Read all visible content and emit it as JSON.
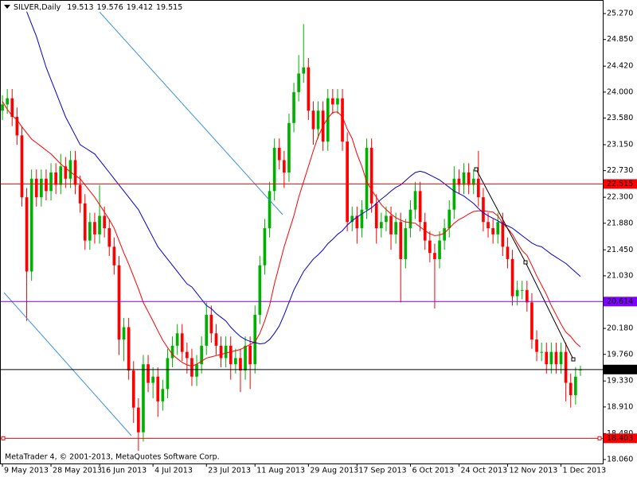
{
  "chart_data": {
    "type": "candlestick",
    "symbol": "SILVER,Daily",
    "footer": "MetaTrader 4, © 2001-2013, MetaQuotes Software Corp.",
    "up_color": "#00b000",
    "down_color": "#ff0000",
    "xlim": [
      -0.5,
      123.6
    ],
    "ylim": [
      17.996,
      25.489
    ],
    "grid": false,
    "yticks": [
      {
        "value": 25.27,
        "label": "25.270"
      },
      {
        "value": 24.85,
        "label": "24.850"
      },
      {
        "value": 24.42,
        "label": "24.420"
      },
      {
        "value": 24.0,
        "label": "24.000"
      },
      {
        "value": 23.58,
        "label": "23.580"
      },
      {
        "value": 23.15,
        "label": "23.150"
      },
      {
        "value": 22.73,
        "label": "22.730"
      },
      {
        "value": 22.3,
        "label": "22.300"
      },
      {
        "value": 21.88,
        "label": "21.880"
      },
      {
        "value": 21.45,
        "label": "21.450"
      },
      {
        "value": 21.03,
        "label": "21.030"
      },
      {
        "value": 20.61,
        "label": "20.610"
      },
      {
        "value": 20.18,
        "label": "20.180"
      },
      {
        "value": 19.76,
        "label": "19.760"
      },
      {
        "value": 19.33,
        "label": "19.330"
      },
      {
        "value": 18.91,
        "label": "18.910"
      },
      {
        "value": 18.48,
        "label": "18.480"
      },
      {
        "value": 18.06,
        "label": "18.060"
      }
    ],
    "xticks": [
      {
        "value": 0,
        "label": "9 May 2013"
      },
      {
        "value": 10,
        "label": "28 May 2013"
      },
      {
        "value": 20,
        "label": "16 Jun 2013"
      },
      {
        "value": 31,
        "label": "4 Jul 2013"
      },
      {
        "value": 42,
        "label": "23 Jul 2013"
      },
      {
        "value": 52,
        "label": "11 Aug 2013"
      },
      {
        "value": 63,
        "label": "29 Aug 2013"
      },
      {
        "value": 73,
        "label": "17 Sep 2013"
      },
      {
        "value": 84,
        "label": "6 Oct 2013"
      },
      {
        "value": 94,
        "label": "24 Oct 2013"
      },
      {
        "value": 104,
        "label": "12 Nov 2013"
      },
      {
        "value": 115,
        "label": "1 Dec 2013"
      }
    ],
    "hlines": [
      {
        "value": 22.515,
        "color": "#ff0000"
      },
      {
        "value": 20.614,
        "color": "#8000ff"
      },
      {
        "value": 19.515,
        "color": "#000000"
      },
      {
        "value": 18.403,
        "color": "#ff0000"
      }
    ],
    "candles": [
      [
        23.7,
        23.95,
        23.55,
        23.8
      ],
      [
        23.8,
        24.05,
        23.65,
        23.9
      ],
      [
        23.9,
        24.05,
        23.45,
        23.6
      ],
      [
        23.6,
        23.75,
        23.15,
        23.3
      ],
      [
        23.3,
        23.45,
        22.15,
        22.3
      ],
      [
        22.3,
        22.45,
        20.3,
        21.1
      ],
      [
        21.1,
        22.75,
        20.95,
        22.6
      ],
      [
        22.6,
        22.75,
        22.15,
        22.3
      ],
      [
        22.3,
        22.75,
        22.15,
        22.6
      ],
      [
        22.6,
        22.75,
        22.25,
        22.4
      ],
      [
        22.4,
        22.85,
        22.25,
        22.7
      ],
      [
        22.7,
        22.85,
        22.35,
        22.5
      ],
      [
        22.5,
        23.0,
        22.35,
        22.8
      ],
      [
        22.8,
        22.95,
        22.45,
        22.6
      ],
      [
        22.6,
        23.05,
        22.45,
        22.9
      ],
      [
        22.9,
        23.05,
        22.35,
        22.5
      ],
      [
        22.5,
        22.65,
        22.05,
        22.2
      ],
      [
        22.2,
        22.35,
        21.45,
        21.6
      ],
      [
        21.6,
        22.05,
        21.45,
        21.9
      ],
      [
        21.9,
        22.05,
        21.55,
        21.7
      ],
      [
        21.7,
        22.5,
        21.55,
        22.0
      ],
      [
        22.0,
        22.15,
        21.65,
        21.8
      ],
      [
        21.8,
        21.95,
        21.35,
        21.5
      ],
      [
        21.5,
        21.65,
        21.05,
        21.2
      ],
      [
        21.2,
        21.35,
        19.75,
        20.0
      ],
      [
        20.0,
        20.35,
        19.65,
        20.2
      ],
      [
        20.2,
        20.35,
        19.35,
        19.5
      ],
      [
        19.5,
        19.65,
        18.65,
        18.9
      ],
      [
        18.9,
        19.05,
        18.2,
        18.5
      ],
      [
        18.5,
        19.75,
        18.35,
        19.6
      ],
      [
        19.6,
        19.75,
        19.15,
        19.3
      ],
      [
        19.3,
        19.55,
        19.05,
        19.4
      ],
      [
        19.4,
        19.55,
        18.75,
        19.0
      ],
      [
        19.0,
        19.35,
        18.85,
        19.2
      ],
      [
        19.2,
        19.85,
        19.05,
        19.7
      ],
      [
        19.7,
        20.05,
        19.55,
        19.9
      ],
      [
        19.9,
        20.25,
        19.75,
        20.1
      ],
      [
        20.1,
        20.25,
        19.65,
        19.8
      ],
      [
        19.8,
        19.95,
        19.45,
        19.7
      ],
      [
        19.7,
        19.85,
        19.25,
        19.4
      ],
      [
        19.4,
        19.75,
        19.25,
        19.6
      ],
      [
        19.6,
        20.05,
        19.45,
        19.9
      ],
      [
        19.9,
        20.6,
        19.75,
        20.4
      ],
      [
        20.4,
        20.55,
        19.95,
        20.1
      ],
      [
        20.1,
        20.25,
        19.75,
        19.9
      ],
      [
        19.9,
        20.05,
        19.55,
        19.7
      ],
      [
        19.7,
        20.05,
        19.55,
        19.9
      ],
      [
        19.9,
        20.05,
        19.35,
        19.6
      ],
      [
        19.6,
        19.85,
        19.45,
        19.7
      ],
      [
        19.7,
        19.85,
        19.15,
        19.5
      ],
      [
        19.5,
        20.05,
        19.35,
        19.9
      ],
      [
        19.9,
        20.05,
        19.2,
        19.6
      ],
      [
        19.6,
        20.55,
        19.45,
        20.4
      ],
      [
        20.4,
        21.35,
        20.25,
        21.2
      ],
      [
        21.2,
        21.95,
        21.05,
        21.8
      ],
      [
        21.8,
        22.55,
        21.65,
        22.4
      ],
      [
        22.4,
        23.25,
        22.25,
        23.1
      ],
      [
        23.1,
        23.25,
        22.75,
        22.9
      ],
      [
        22.9,
        23.05,
        22.45,
        22.7
      ],
      [
        22.7,
        23.65,
        22.55,
        23.5
      ],
      [
        23.5,
        24.15,
        23.35,
        24.0
      ],
      [
        24.0,
        24.6,
        23.85,
        24.3
      ],
      [
        24.3,
        25.1,
        24.15,
        24.4
      ],
      [
        24.4,
        24.55,
        23.55,
        23.7
      ],
      [
        23.7,
        23.85,
        23.15,
        23.4
      ],
      [
        23.4,
        23.85,
        23.25,
        23.7
      ],
      [
        23.7,
        23.85,
        23.05,
        23.2
      ],
      [
        23.2,
        24.05,
        23.05,
        23.9
      ],
      [
        23.9,
        24.05,
        23.65,
        23.8
      ],
      [
        23.8,
        24.05,
        23.65,
        23.9
      ],
      [
        23.9,
        24.05,
        23.05,
        23.2
      ],
      [
        23.2,
        23.35,
        21.75,
        21.9
      ],
      [
        21.9,
        22.15,
        21.75,
        22.0
      ],
      [
        22.0,
        22.15,
        21.55,
        21.8
      ],
      [
        21.8,
        22.25,
        21.65,
        22.1
      ],
      [
        22.1,
        23.25,
        21.95,
        23.1
      ],
      [
        23.1,
        23.25,
        22.05,
        22.2
      ],
      [
        22.2,
        22.35,
        21.55,
        21.8
      ],
      [
        21.8,
        22.05,
        21.65,
        21.9
      ],
      [
        21.9,
        22.15,
        21.75,
        22.0
      ],
      [
        22.0,
        22.15,
        21.45,
        21.7
      ],
      [
        21.7,
        22.05,
        21.55,
        21.9
      ],
      [
        21.9,
        22.05,
        20.6,
        21.3
      ],
      [
        21.3,
        21.95,
        21.15,
        21.8
      ],
      [
        21.8,
        22.25,
        21.65,
        22.1
      ],
      [
        22.1,
        22.55,
        21.95,
        22.4
      ],
      [
        22.4,
        22.55,
        21.75,
        21.9
      ],
      [
        21.9,
        22.05,
        21.45,
        21.6
      ],
      [
        21.6,
        21.75,
        21.25,
        21.4
      ],
      [
        21.4,
        21.55,
        20.5,
        21.3
      ],
      [
        21.3,
        21.75,
        21.15,
        21.6
      ],
      [
        21.6,
        21.95,
        21.45,
        21.8
      ],
      [
        21.8,
        22.25,
        21.65,
        22.1
      ],
      [
        22.1,
        22.8,
        21.95,
        22.6
      ],
      [
        22.6,
        22.75,
        22.35,
        22.5
      ],
      [
        22.5,
        22.85,
        22.35,
        22.7
      ],
      [
        22.7,
        22.85,
        22.35,
        22.5
      ],
      [
        22.5,
        22.75,
        22.35,
        22.6
      ],
      [
        22.6,
        23.05,
        22.15,
        22.3
      ],
      [
        22.3,
        22.45,
        21.75,
        21.9
      ],
      [
        21.9,
        22.05,
        21.65,
        21.8
      ],
      [
        21.8,
        21.95,
        21.55,
        21.7
      ],
      [
        21.7,
        22.05,
        21.55,
        21.9
      ],
      [
        21.9,
        22.05,
        21.35,
        21.5
      ],
      [
        21.5,
        21.65,
        21.15,
        21.3
      ],
      [
        21.3,
        21.45,
        20.55,
        20.7
      ],
      [
        20.7,
        20.95,
        20.55,
        20.8
      ],
      [
        20.8,
        20.95,
        20.65,
        20.8
      ],
      [
        20.8,
        20.95,
        20.45,
        20.6
      ],
      [
        20.6,
        20.75,
        19.85,
        20.0
      ],
      [
        20.0,
        20.15,
        19.65,
        19.8
      ],
      [
        19.8,
        19.95,
        19.65,
        19.8
      ],
      [
        19.8,
        19.95,
        19.45,
        19.6
      ],
      [
        19.6,
        19.95,
        19.45,
        19.8
      ],
      [
        19.8,
        19.95,
        19.45,
        19.6
      ],
      [
        19.6,
        19.95,
        19.45,
        19.8
      ],
      [
        19.8,
        19.95,
        19.0,
        19.3
      ],
      [
        19.3,
        19.45,
        18.9,
        19.1
      ],
      [
        19.1,
        19.55,
        18.95,
        19.4
      ],
      [
        19.513,
        19.576,
        19.412,
        19.515
      ]
    ],
    "series": [
      {
        "color": "#ff0000",
        "values": [
          23.85,
          23.72,
          23.62,
          23.55,
          23.44,
          23.34,
          23.24,
          23.18,
          23.12,
          23.06,
          23.0,
          22.92,
          22.84,
          22.77,
          22.71,
          22.65,
          22.6,
          22.5,
          22.4,
          22.3,
          22.18,
          22.06,
          21.94,
          21.8,
          21.6,
          21.4,
          21.22,
          21.02,
          20.82,
          20.6,
          20.45,
          20.3,
          20.14,
          19.99,
          19.87,
          19.76,
          19.69,
          19.63,
          19.59,
          19.57,
          19.6,
          19.65,
          19.7,
          19.72,
          19.74,
          19.76,
          19.78,
          19.8,
          19.82,
          19.84,
          19.88,
          19.92,
          19.96,
          20.1,
          20.3,
          20.55,
          20.9,
          21.2,
          21.5,
          21.75,
          22.0,
          22.3,
          22.55,
          22.8,
          23.05,
          23.28,
          23.45,
          23.58,
          23.67,
          23.68,
          23.6,
          23.4,
          23.25,
          23.0,
          22.8,
          22.55,
          22.42,
          22.3,
          22.18,
          22.1,
          22.03,
          21.97,
          21.93,
          21.9,
          21.89,
          21.88,
          21.82,
          21.76,
          21.71,
          21.68,
          21.69,
          21.72,
          21.8,
          21.88,
          21.94,
          21.98,
          22.03,
          22.07,
          22.08,
          22.08,
          22.07,
          22.06,
          22.0,
          21.88,
          21.8,
          21.7,
          21.56,
          21.44,
          21.36,
          21.2,
          21.03,
          20.88,
          20.73,
          20.55,
          20.4,
          20.25,
          20.12,
          20.05,
          19.95,
          19.88
        ]
      },
      {
        "color": "#0000d0",
        "values": [
          null,
          null,
          null,
          null,
          null,
          25.3,
          25.1,
          24.9,
          24.65,
          24.4,
          24.2,
          24.0,
          23.8,
          23.6,
          23.45,
          23.3,
          23.15,
          23.1,
          23.05,
          23.0,
          22.9,
          22.8,
          22.7,
          22.6,
          22.5,
          22.4,
          22.3,
          22.2,
          22.1,
          21.95,
          21.8,
          21.65,
          21.5,
          21.4,
          21.3,
          21.2,
          21.1,
          21.0,
          20.9,
          20.85,
          20.75,
          20.65,
          20.55,
          20.5,
          20.42,
          20.36,
          20.3,
          20.2,
          20.12,
          20.05,
          20.0,
          19.97,
          19.95,
          19.93,
          19.94,
          20.0,
          20.1,
          20.22,
          20.4,
          20.6,
          20.8,
          20.95,
          21.1,
          21.2,
          21.3,
          21.37,
          21.45,
          21.55,
          21.62,
          21.7,
          21.76,
          21.85,
          21.92,
          21.98,
          22.03,
          22.08,
          22.13,
          22.2,
          22.27,
          22.33,
          22.4,
          22.46,
          22.5,
          22.57,
          22.64,
          22.7,
          22.72,
          22.7,
          22.66,
          22.62,
          22.58,
          22.52,
          22.46,
          22.4,
          22.36,
          22.32,
          22.26,
          22.2,
          22.12,
          22.05,
          22.0,
          21.96,
          21.92,
          21.87,
          21.84,
          21.8,
          21.74,
          21.68,
          21.62,
          21.56,
          21.52,
          21.5,
          21.44,
          21.38,
          21.33,
          21.28,
          21.23,
          21.16,
          21.09,
          21.02
        ]
      }
    ]
  }
}
